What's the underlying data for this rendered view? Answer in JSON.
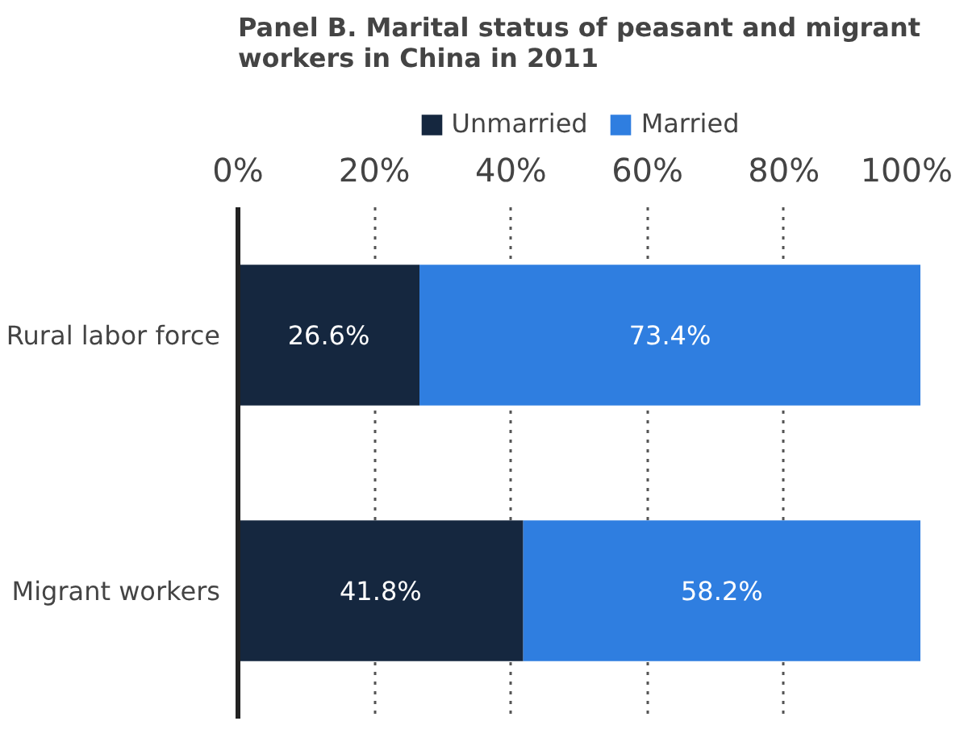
{
  "chart_data": {
    "type": "bar",
    "orientation": "horizontal",
    "stacked": true,
    "title": "Panel B. Marital status of peasant and migrant workers in China in 2011",
    "categories": [
      "Rural labor force",
      "Migrant workers"
    ],
    "series": [
      {
        "name": "Unmarried",
        "color": "#15273f",
        "values": [
          26.6,
          41.8
        ],
        "value_labels": [
          "26.6%",
          "41.8%"
        ]
      },
      {
        "name": "Married",
        "color": "#2f7ee0",
        "values": [
          73.4,
          58.2
        ],
        "value_labels": [
          "73.4%",
          "58.2%"
        ]
      }
    ],
    "xlim": [
      0,
      100
    ],
    "xticks": [
      {
        "value": 0,
        "label": "0%"
      },
      {
        "value": 20,
        "label": "20%"
      },
      {
        "value": 40,
        "label": "40%"
      },
      {
        "value": 60,
        "label": "60%"
      },
      {
        "value": 80,
        "label": "80%"
      },
      {
        "value": 100,
        "label": "100%"
      }
    ],
    "grid": "x",
    "legend": "top"
  }
}
